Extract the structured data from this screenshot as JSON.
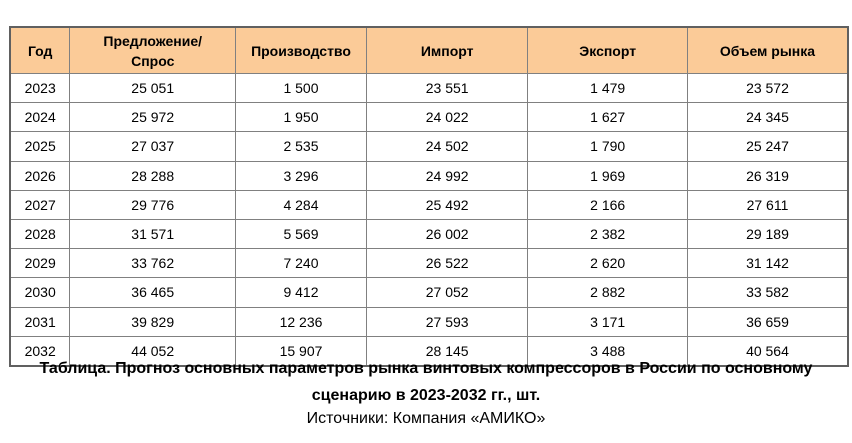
{
  "table": {
    "headers": [
      "Год",
      "Предложение/ Спрос",
      "Производство",
      "Импорт",
      "Экспорт",
      "Объем рынка"
    ],
    "rows": [
      [
        "2023",
        "25 051",
        "1 500",
        "23 551",
        "1 479",
        "23 572"
      ],
      [
        "2024",
        "25 972",
        "1 950",
        "24 022",
        "1 627",
        "24 345"
      ],
      [
        "2025",
        "27 037",
        "2 535",
        "24 502",
        "1 790",
        "25 247"
      ],
      [
        "2026",
        "28 288",
        "3 296",
        "24 992",
        "1 969",
        "26 319"
      ],
      [
        "2027",
        "29 776",
        "4 284",
        "25 492",
        "2 166",
        "27 611"
      ],
      [
        "2028",
        "31 571",
        "5 569",
        "26 002",
        "2 382",
        "29 189"
      ],
      [
        "2029",
        "33 762",
        "7 240",
        "26 522",
        "2 620",
        "31 142"
      ],
      [
        "2030",
        "36 465",
        "9 412",
        "27 052",
        "2 882",
        "33 582"
      ],
      [
        "2031",
        "39 829",
        "12 236",
        "27 593",
        "3 171",
        "36 659"
      ],
      [
        "2032",
        "44 052",
        "15 907",
        "28 145",
        "3 488",
        "40 564"
      ]
    ]
  },
  "caption": "Таблица. Прогноз основных параметров рынка винтовых компрессоров в России по основному сценарию в 2023-2032 гг., шт.",
  "source": "Источники: Компания «АМИКО»",
  "colors": {
    "header_bg": "#fbcb98",
    "border": "#808080"
  }
}
